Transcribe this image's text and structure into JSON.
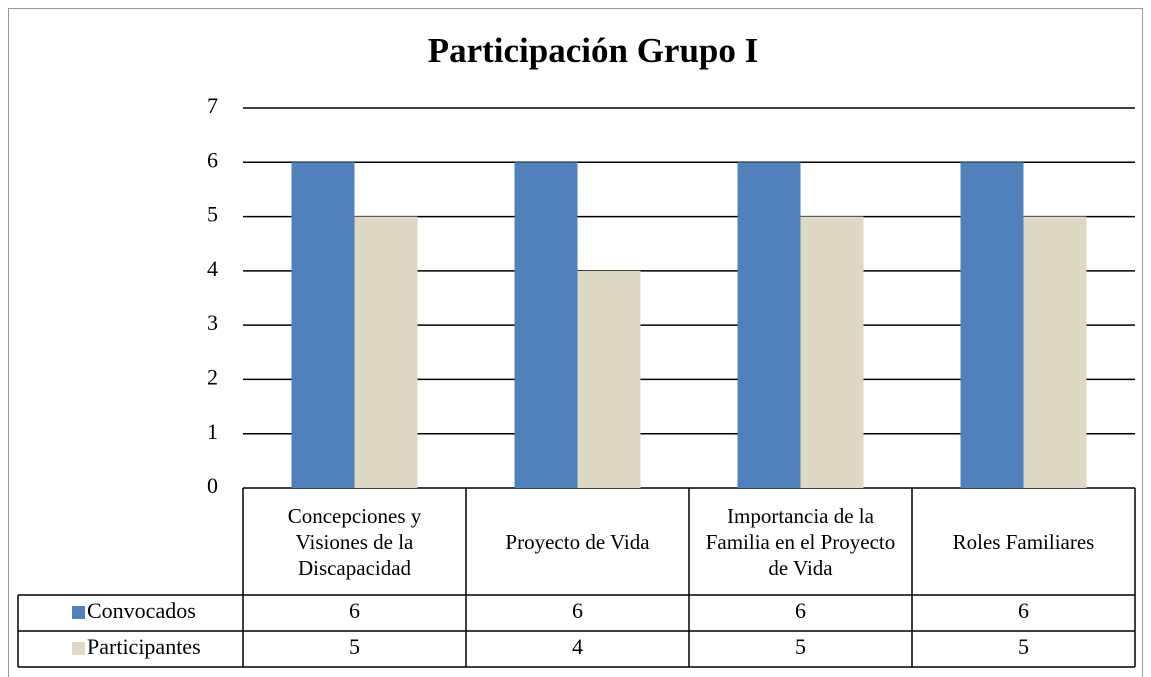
{
  "chart_data": {
    "type": "bar",
    "title": "Participación Grupo I",
    "categories": [
      "Concepciones y Visiones de la Discapacidad",
      "Proyecto de Vida",
      "Importancia de la Familia en el Proyecto de Vida",
      "Roles Familiares"
    ],
    "series": [
      {
        "name": "Convocados",
        "color": "#4f81bd",
        "values": [
          6,
          6,
          6,
          6
        ]
      },
      {
        "name": "Participantes",
        "color": "#ddd9c3",
        "values": [
          5,
          4,
          5,
          5
        ]
      }
    ],
    "ylim": [
      0,
      7
    ],
    "yticks": [
      0,
      1,
      2,
      3,
      4,
      5,
      6,
      7
    ],
    "grid": true,
    "data_table": true
  }
}
